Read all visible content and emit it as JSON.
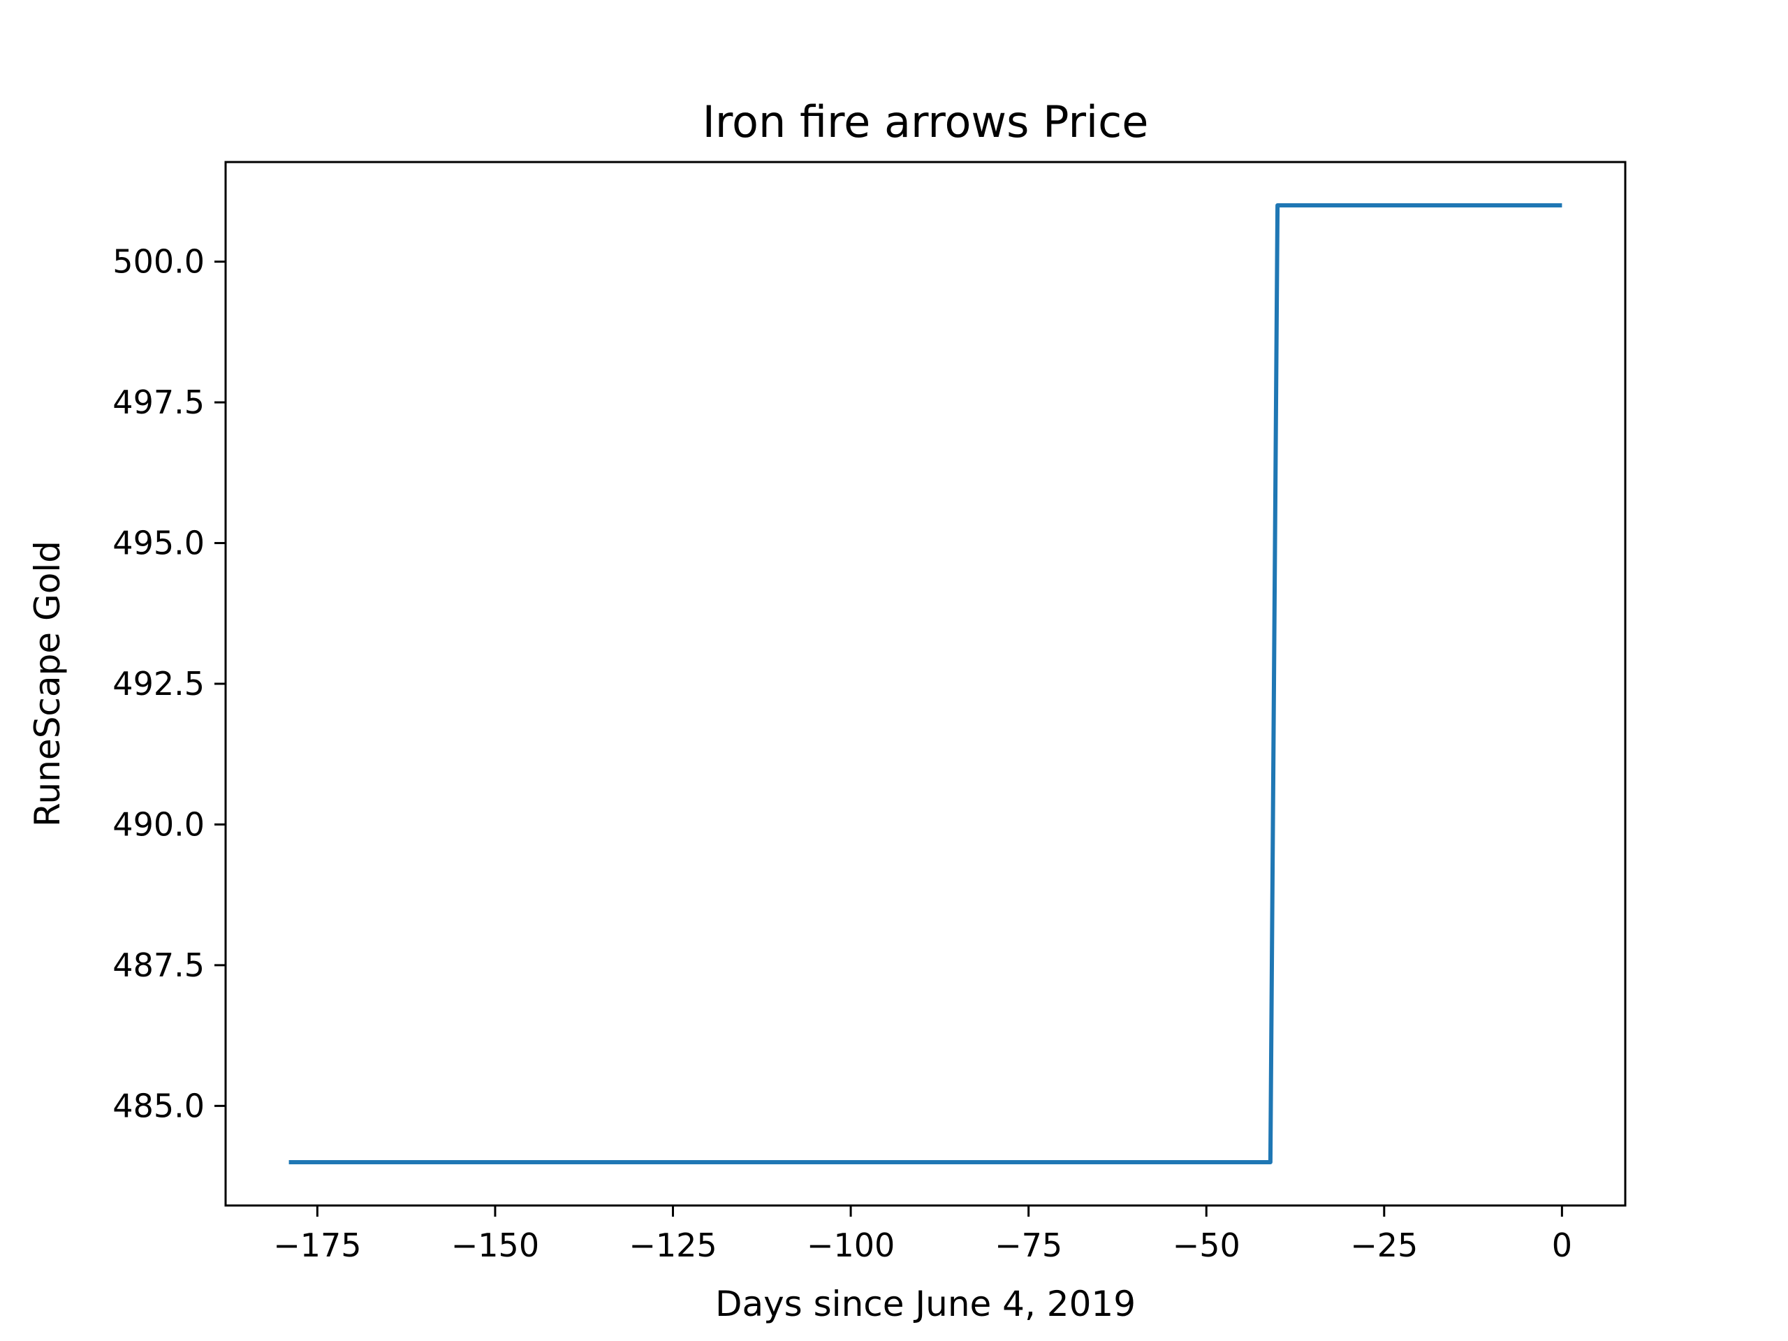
{
  "chart_data": {
    "type": "line",
    "title": "Iron fire arrows Price",
    "xlabel": "Days since June 4, 2019",
    "ylabel": "RuneScape Gold",
    "xlim": [
      -187.9,
      8.9
    ],
    "ylim": [
      483.23,
      501.77
    ],
    "xticks": [
      -175,
      -150,
      -125,
      -100,
      -75,
      -50,
      -25,
      0
    ],
    "xtick_labels": [
      "−175",
      "−150",
      "−125",
      "−100",
      "−75",
      "−50",
      "−25",
      "0"
    ],
    "yticks": [
      485.0,
      487.5,
      490.0,
      492.5,
      495.0,
      497.5,
      500.0
    ],
    "ytick_labels": [
      "485.0",
      "487.5",
      "490.0",
      "492.5",
      "495.0",
      "497.5",
      "500.0"
    ],
    "grid": false,
    "legend": false,
    "series": [
      {
        "color": "#1f77b4",
        "x": [
          -179,
          -41,
          -40,
          0
        ],
        "y": [
          484,
          484,
          501,
          501
        ]
      }
    ]
  }
}
